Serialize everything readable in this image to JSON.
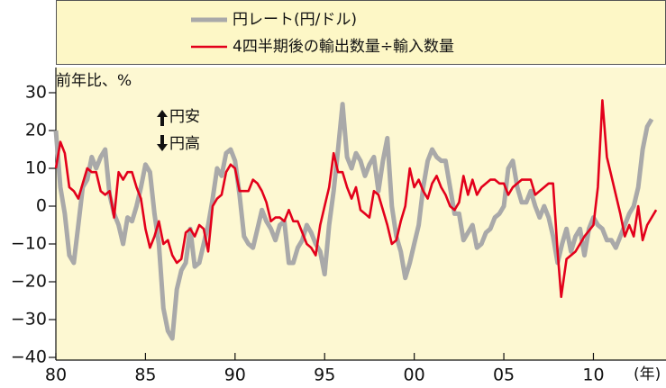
{
  "chart_data": {
    "type": "line",
    "y_label": "前年比、%",
    "x_label": "(年)",
    "annotations": [
      "円安",
      "円高"
    ],
    "xlim": [
      1980,
      2014
    ],
    "xticks": [
      {
        "value": 1980,
        "label": "80"
      },
      {
        "value": 1985,
        "label": "85"
      },
      {
        "value": 1990,
        "label": "90"
      },
      {
        "value": 1995,
        "label": "95"
      },
      {
        "value": 2000,
        "label": "00"
      },
      {
        "value": 2005,
        "label": "05"
      },
      {
        "value": 2010,
        "label": "10"
      }
    ],
    "ylim": [
      -40,
      30
    ],
    "yticks": [
      30,
      20,
      10,
      0,
      {
        "value": -10,
        "label": "−10"
      },
      {
        "value": -20,
        "label": "−20"
      },
      {
        "value": -30,
        "label": "−30"
      },
      {
        "value": -40,
        "label": "−40"
      }
    ],
    "series": [
      {
        "name": "円レート(円/ドル)",
        "color": "#a9a9a9",
        "x": [
          1980,
          1980.25,
          1980.5,
          1980.75,
          1981,
          1981.25,
          1981.5,
          1981.75,
          1982,
          1982.25,
          1982.5,
          1982.75,
          1983,
          1983.25,
          1983.5,
          1983.75,
          1984,
          1984.25,
          1984.5,
          1984.75,
          1985,
          1985.25,
          1985.5,
          1985.75,
          1986,
          1986.25,
          1986.5,
          1986.75,
          1987,
          1987.25,
          1987.5,
          1987.75,
          1988,
          1988.25,
          1988.5,
          1988.75,
          1989,
          1989.25,
          1989.5,
          1989.75,
          1990,
          1990.25,
          1990.5,
          1990.75,
          1991,
          1991.25,
          1991.5,
          1991.75,
          1992,
          1992.25,
          1992.5,
          1992.75,
          1993,
          1993.25,
          1993.5,
          1993.75,
          1994,
          1994.25,
          1994.5,
          1994.75,
          1995,
          1995.25,
          1995.5,
          1995.75,
          1996,
          1996.25,
          1996.5,
          1996.75,
          1997,
          1997.25,
          1997.5,
          1997.75,
          1998,
          1998.25,
          1998.5,
          1998.75,
          1999,
          1999.25,
          1999.5,
          1999.75,
          2000,
          2000.25,
          2000.5,
          2000.75,
          2001,
          2001.25,
          2001.5,
          2001.75,
          2002,
          2002.25,
          2002.5,
          2002.75,
          2003,
          2003.25,
          2003.5,
          2003.75,
          2004,
          2004.25,
          2004.5,
          2004.75,
          2005,
          2005.25,
          2005.5,
          2005.75,
          2006,
          2006.25,
          2006.5,
          2006.75,
          2007,
          2007.25,
          2007.5,
          2007.75,
          2008,
          2008.25,
          2008.5,
          2008.75,
          2009,
          2009.25,
          2009.5,
          2009.75,
          2010,
          2010.25,
          2010.5,
          2010.75,
          2011,
          2011.25,
          2011.5,
          2011.75,
          2012,
          2012.25,
          2012.5,
          2012.75,
          2013,
          2013.25
        ],
        "values": [
          20,
          5,
          -2,
          -13,
          -15,
          -5,
          5,
          7,
          13,
          10,
          13,
          15,
          3,
          -2,
          -5,
          -10,
          -3,
          -4,
          0,
          5,
          11,
          9,
          -2,
          -10,
          -27,
          -33,
          -35,
          -22,
          -17,
          -15,
          -6,
          -16,
          -15,
          -10,
          -5,
          2,
          10,
          8,
          14,
          15,
          12,
          3,
          -8,
          -10,
          -11,
          -6,
          -1,
          -4,
          -6,
          -9,
          -5,
          -4,
          -15,
          -15,
          -11,
          -9,
          -5,
          -7,
          -10,
          -12,
          -18,
          -5,
          4,
          15,
          27,
          13,
          10,
          14,
          12,
          8,
          11,
          13,
          4,
          12,
          18,
          0,
          -8,
          -12,
          -19,
          -15,
          -10,
          -5,
          5,
          12,
          15,
          13,
          12,
          12,
          5,
          -2,
          -2,
          -9,
          -7,
          -5,
          -11,
          -10,
          -7,
          -6,
          -3,
          -2,
          0,
          10,
          12,
          5,
          1,
          1,
          4,
          0,
          -3,
          0,
          -3,
          -8,
          -15,
          -10,
          -6,
          -12,
          -8,
          -6,
          -13,
          -6,
          -3,
          -5,
          -6,
          -9,
          -9,
          -11,
          -8,
          -5,
          -2,
          0,
          5,
          15,
          21,
          23
        ]
      },
      {
        "name": "4四半期後の輸出数量÷輸入数量",
        "color": "#e3001b",
        "x": [
          1980,
          1980.25,
          1980.5,
          1980.75,
          1981,
          1981.25,
          1981.5,
          1981.75,
          1982,
          1982.25,
          1982.5,
          1982.75,
          1983,
          1983.25,
          1983.5,
          1983.75,
          1984,
          1984.25,
          1984.5,
          1984.75,
          1985,
          1985.25,
          1985.5,
          1985.75,
          1986,
          1986.25,
          1986.5,
          1986.75,
          1987,
          1987.25,
          1987.5,
          1987.75,
          1988,
          1988.25,
          1988.5,
          1988.75,
          1989,
          1989.25,
          1989.5,
          1989.75,
          1990,
          1990.25,
          1990.5,
          1990.75,
          1991,
          1991.25,
          1991.5,
          1991.75,
          1992,
          1992.25,
          1992.5,
          1992.75,
          1993,
          1993.25,
          1993.5,
          1993.75,
          1994,
          1994.25,
          1994.5,
          1994.75,
          1995,
          1995.25,
          1995.5,
          1995.75,
          1996,
          1996.25,
          1996.5,
          1996.75,
          1997,
          1997.25,
          1997.5,
          1997.75,
          1998,
          1998.25,
          1998.5,
          1998.75,
          1999,
          1999.25,
          1999.5,
          1999.75,
          2000,
          2000.25,
          2000.5,
          2000.75,
          2001,
          2001.25,
          2001.5,
          2001.75,
          2002,
          2002.25,
          2002.5,
          2002.75,
          2003,
          2003.25,
          2003.5,
          2003.75,
          2004,
          2004.25,
          2004.5,
          2004.75,
          2005,
          2005.25,
          2005.5,
          2005.75,
          2006,
          2006.25,
          2006.5,
          2006.75,
          2007,
          2007.25,
          2007.5,
          2007.75,
          2008,
          2008.2,
          2008.5,
          2009,
          2009.5,
          2010,
          2010.25,
          2010.5,
          2010.75,
          2011,
          2011.5,
          2011.75,
          2012,
          2012.25,
          2012.5,
          2012.75,
          2013,
          2013.5
        ],
        "values": [
          10,
          17,
          14,
          5,
          4,
          2,
          6,
          10,
          9,
          9,
          4,
          3,
          4,
          -3,
          9,
          7,
          9,
          9,
          5,
          2,
          -6,
          -11,
          -8,
          -4,
          -10,
          -9,
          -13,
          -15,
          -14,
          -7,
          -6,
          -8,
          -5,
          -6,
          -12,
          0,
          2,
          3,
          9,
          11,
          10,
          4,
          4,
          4,
          7,
          6,
          4,
          1,
          -4,
          -3,
          -3,
          -4,
          -1,
          -4,
          -4,
          -7,
          -10,
          -11,
          -13,
          -5,
          0,
          5,
          14,
          9,
          9,
          5,
          2,
          5,
          -1,
          -2,
          -3,
          4,
          3,
          -1,
          -5,
          -10,
          -9,
          -4,
          0,
          10,
          5,
          7,
          4,
          2,
          6,
          8,
          5,
          3,
          0,
          -1,
          1,
          8,
          3,
          7,
          3,
          5,
          6,
          7,
          7,
          6,
          6,
          3,
          5,
          6,
          7,
          7,
          7,
          3,
          4,
          5,
          6,
          6,
          -12,
          -24,
          -14,
          -12,
          -8,
          -5,
          5,
          28,
          13,
          8,
          -2,
          -8,
          -5,
          -8,
          0,
          -9,
          -5,
          -1
        ]
      }
    ]
  }
}
